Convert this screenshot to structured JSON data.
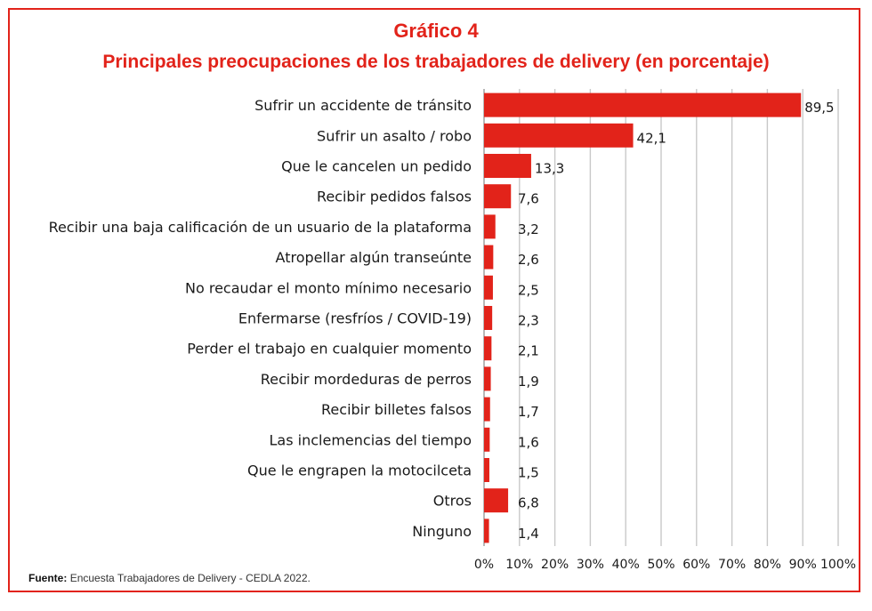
{
  "chart_data": {
    "type": "bar",
    "orientation": "horizontal",
    "title": "Gráfico 4",
    "subtitle": "Principales preocupaciones de los trabajadores de delivery  (en porcentaje)",
    "categories": [
      "Sufrir un accidente de tránsito",
      "Sufrir un asalto / robo",
      "Que le cancelen un pedido",
      "Recibir pedidos falsos",
      "Recibir una baja calificación de un usuario de la plataforma",
      "Atropellar algún transeúnte",
      "No recaudar el monto mínimo necesario",
      "Enfermarse (resfríos / COVID-19)",
      "Perder el trabajo en cualquier momento",
      "Recibir mordeduras de perros",
      "Recibir billetes falsos",
      "Las inclemencias del tiempo",
      "Que le engrapen la motocilceta",
      "Otros",
      "Ninguno"
    ],
    "values": [
      89.5,
      42.1,
      13.3,
      7.6,
      3.2,
      2.6,
      2.5,
      2.3,
      2.1,
      1.9,
      1.7,
      1.6,
      1.5,
      6.8,
      1.4
    ],
    "value_labels": [
      "89,5",
      "42,1",
      "13,3",
      "7,6",
      "3,2",
      "2,6",
      "2,5",
      "2,3",
      "2,1",
      "1,9",
      "1,7",
      "1,6",
      "1,5",
      "6,8",
      "1,4"
    ],
    "x_ticks": [
      "0%",
      "10%",
      "20%",
      "30%",
      "40%",
      "50%",
      "60%",
      "70%",
      "80%",
      "90%",
      "100%"
    ],
    "xlim": [
      0,
      100
    ],
    "grid": true,
    "bar_color": "#e2231a",
    "source_label": "Fuente:",
    "source_text": "Encuesta Trabajadores de Delivery - CEDLA 2022."
  }
}
